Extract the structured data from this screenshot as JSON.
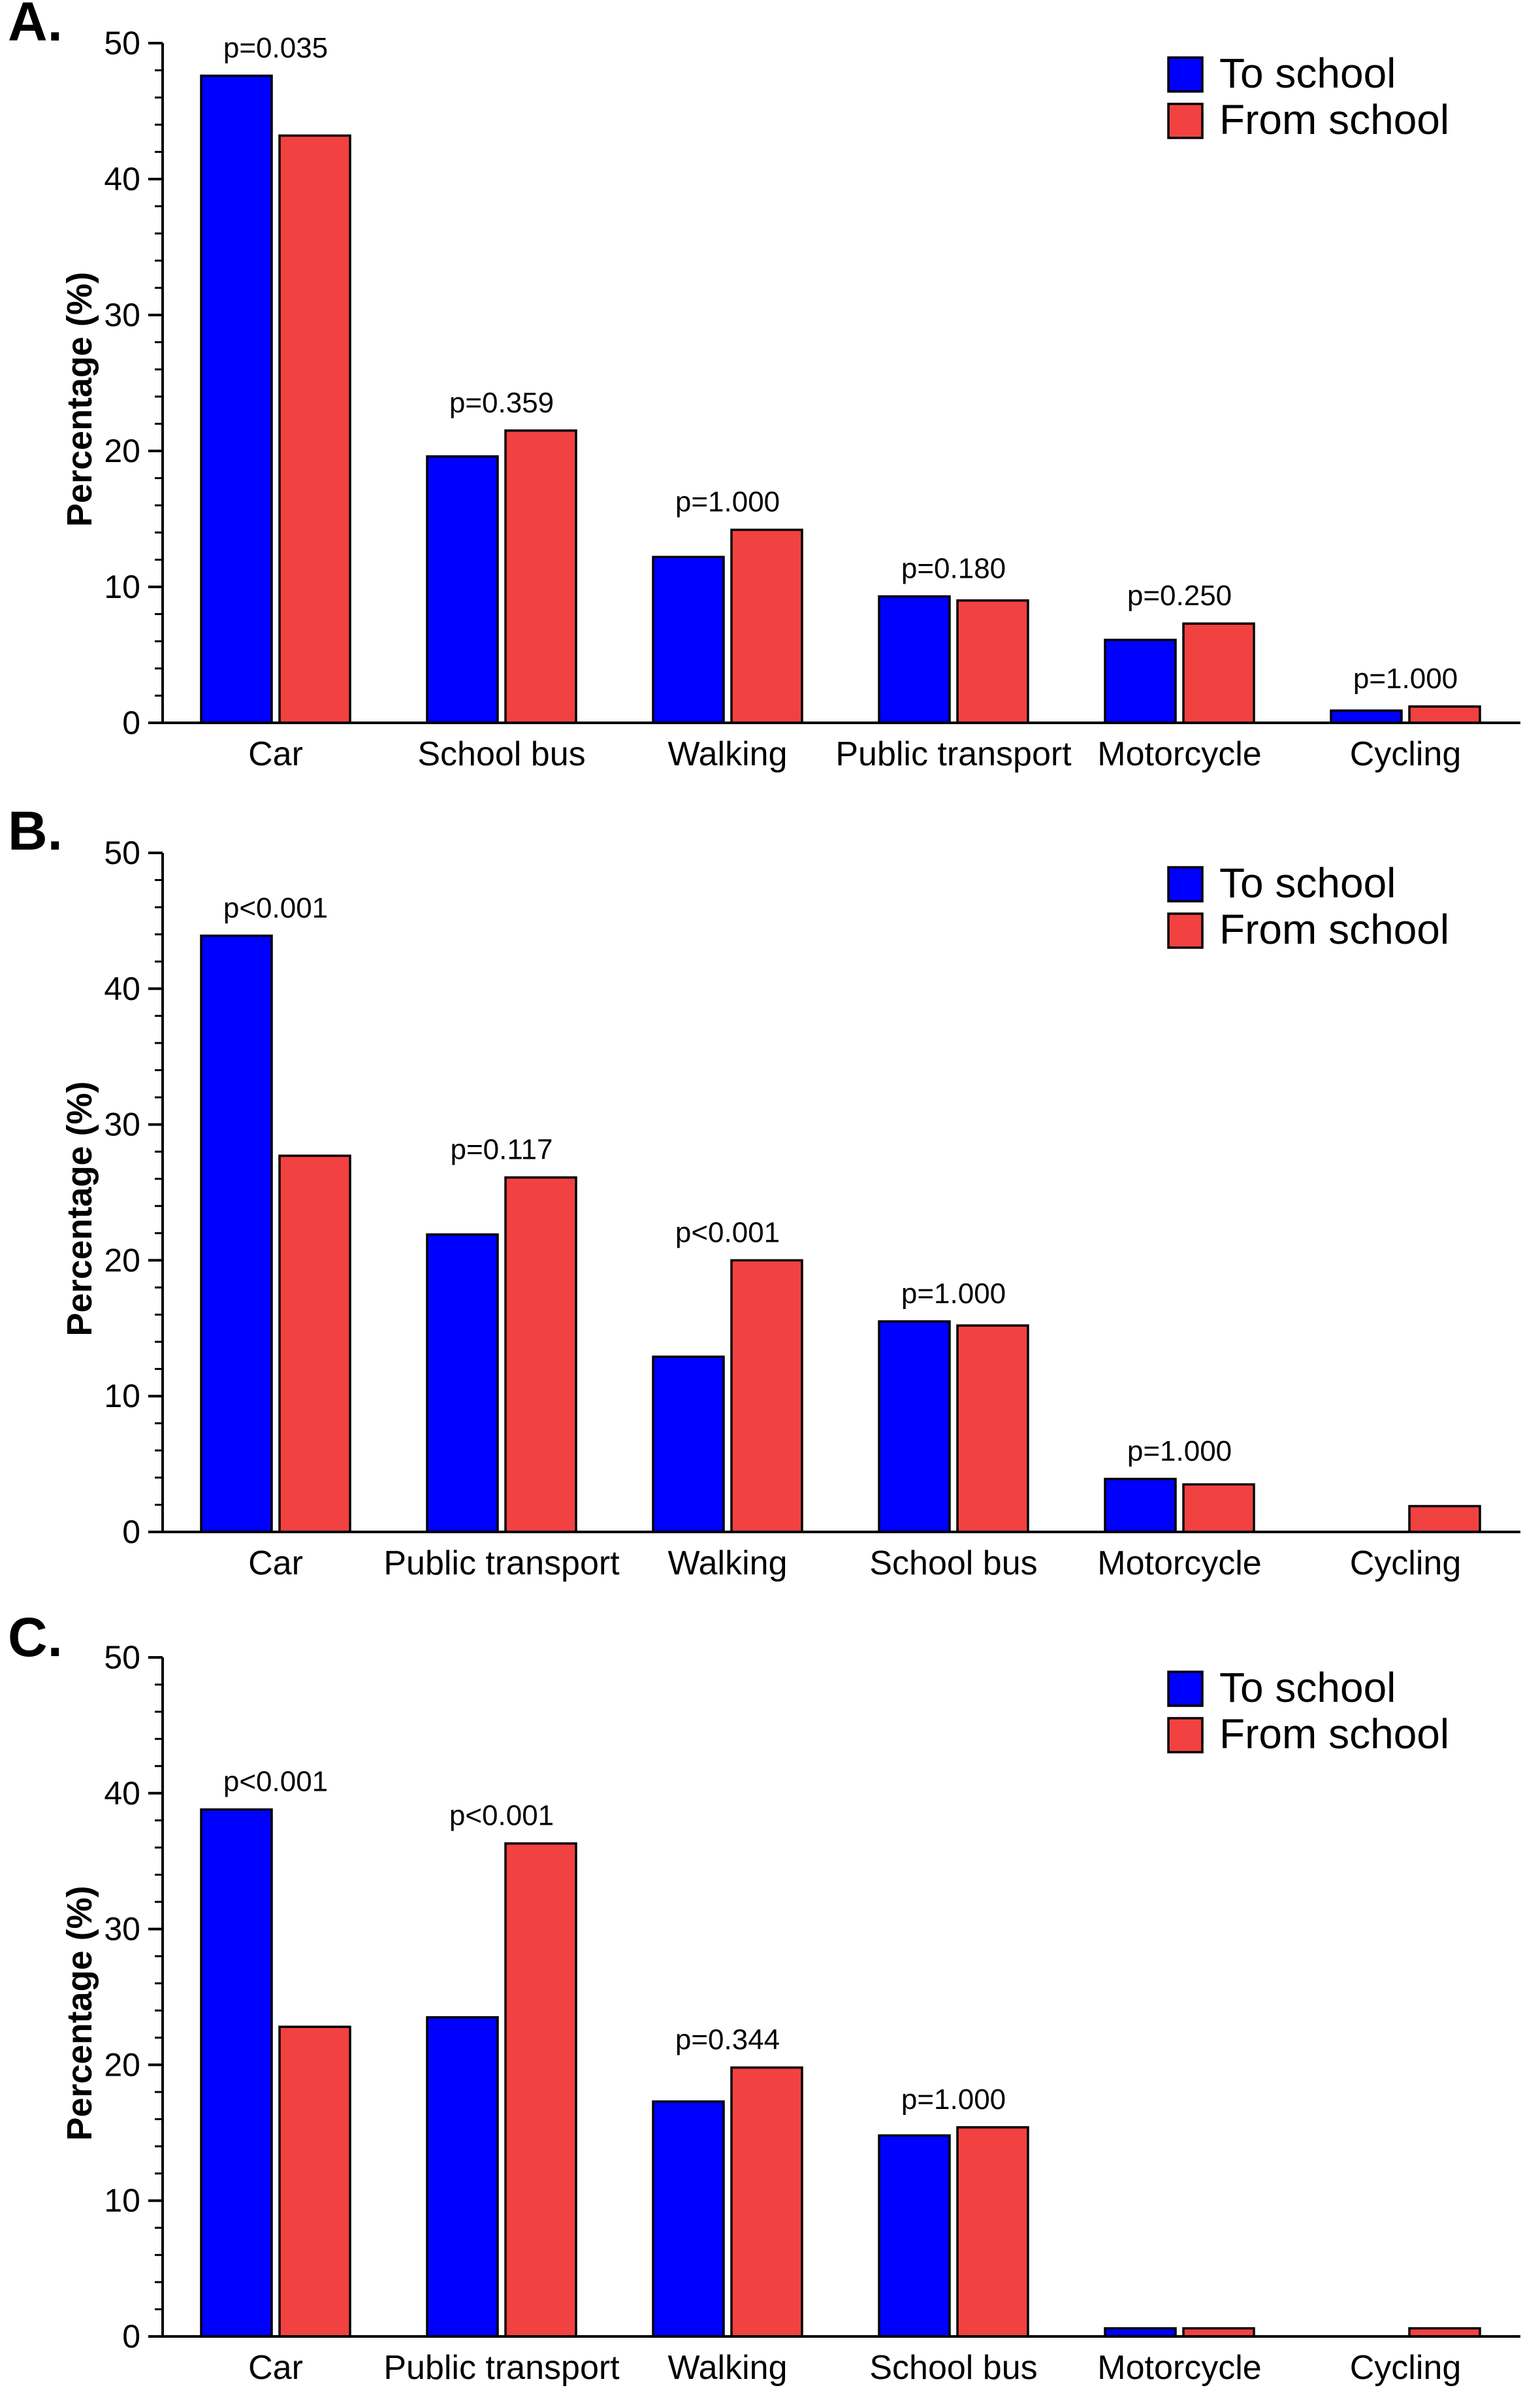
{
  "colors": {
    "to_school": "#0000ff",
    "from_school": "#f24141",
    "axis": "#000000"
  },
  "chart_data": [
    {
      "panel_label": "A.",
      "type": "bar",
      "ylabel": "Percentage (%)",
      "xlabel": "",
      "ylim": [
        0,
        50
      ],
      "yticks": [
        "0",
        "10",
        "20",
        "30",
        "40",
        "50"
      ],
      "legend_position": "top-right",
      "categories": [
        "Car",
        "School bus",
        "Walking",
        "Public transport",
        "Motorcycle",
        "Cycling"
      ],
      "series": [
        {
          "name": "To school",
          "values": [
            47.6,
            19.6,
            12.2,
            9.3,
            6.1,
            0.9
          ]
        },
        {
          "name": "From school",
          "values": [
            43.2,
            21.5,
            14.2,
            9.0,
            7.3,
            1.2
          ]
        }
      ],
      "p_values": [
        "p=0.035",
        "p=0.359",
        "p=1.000",
        "p=0.180",
        "p=0.250",
        "p=1.000"
      ]
    },
    {
      "panel_label": "B.",
      "type": "bar",
      "ylabel": "Percentage (%)",
      "xlabel": "",
      "ylim": [
        0,
        50
      ],
      "yticks": [
        "0",
        "10",
        "20",
        "30",
        "40",
        "50"
      ],
      "legend_position": "top-right",
      "categories": [
        "Car",
        "Public transport",
        "Walking",
        "School bus",
        "Motorcycle",
        "Cycling"
      ],
      "series": [
        {
          "name": "To school",
          "values": [
            43.9,
            21.9,
            12.9,
            15.5,
            3.9,
            0
          ]
        },
        {
          "name": "From school",
          "values": [
            27.7,
            26.1,
            20.0,
            15.2,
            3.5,
            1.9
          ]
        }
      ],
      "p_values": [
        "p<0.001",
        "p=0.117",
        "p<0.001",
        "p=1.000",
        "p=1.000",
        ""
      ]
    },
    {
      "panel_label": "C.",
      "type": "bar",
      "ylabel": "Percentage (%)",
      "xlabel": "",
      "ylim": [
        0,
        50
      ],
      "yticks": [
        "0",
        "10",
        "20",
        "30",
        "40",
        "50"
      ],
      "legend_position": "top-right",
      "categories": [
        "Car",
        "Public transport",
        "Walking",
        "School bus",
        "Motorcycle",
        "Cycling"
      ],
      "series": [
        {
          "name": "To school",
          "values": [
            38.8,
            23.5,
            17.3,
            14.8,
            0.6,
            0
          ]
        },
        {
          "name": "From school",
          "values": [
            22.8,
            36.3,
            19.8,
            15.4,
            0.6,
            0.6
          ]
        }
      ],
      "p_values": [
        "p<0.001",
        "p<0.001",
        "p=0.344",
        "p=1.000",
        "",
        ""
      ]
    }
  ]
}
